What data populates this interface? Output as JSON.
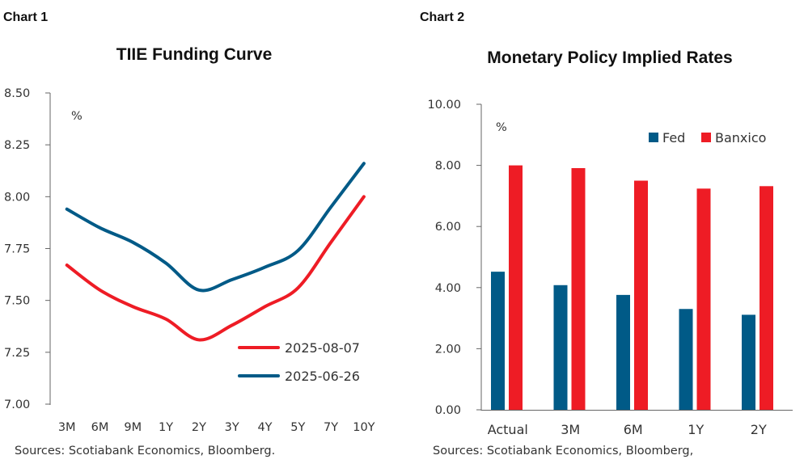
{
  "chart_data": [
    {
      "label": "Chart 1",
      "type": "line",
      "title": "TIIE Funding Curve",
      "ylabel": "%",
      "categories": [
        "3M",
        "6M",
        "9M",
        "1Y",
        "2Y",
        "3Y",
        "4Y",
        "5Y",
        "7Y",
        "10Y"
      ],
      "ylim": [
        7.0,
        8.5
      ],
      "yticks": [
        "7.00",
        "7.25",
        "7.50",
        "7.75",
        "8.00",
        "8.25",
        "8.50"
      ],
      "legend": "bottom-right",
      "grid": false,
      "series": [
        {
          "name": "2025-08-07",
          "color": "#ee1c25",
          "values": [
            7.67,
            7.55,
            7.47,
            7.41,
            7.31,
            7.38,
            7.47,
            7.56,
            7.78,
            8.0
          ]
        },
        {
          "name": "2025-06-26",
          "color": "#005a87",
          "values": [
            7.94,
            7.85,
            7.78,
            7.68,
            7.55,
            7.6,
            7.66,
            7.74,
            7.95,
            8.16
          ]
        }
      ],
      "source": "Sources: Scotiabank Economics, Bloomberg."
    },
    {
      "label": "Chart 2",
      "type": "bar",
      "title": "Monetary Policy Implied Rates",
      "ylabel": "%",
      "categories": [
        "Actual",
        "3M",
        "6M",
        "1Y",
        "2Y"
      ],
      "ylim": [
        0,
        10
      ],
      "yticks": [
        "0.00",
        "2.00",
        "4.00",
        "6.00",
        "8.00",
        "10.00"
      ],
      "legend": "top-right",
      "grid": false,
      "series": [
        {
          "name": "Fed",
          "color": "#005a87",
          "values": [
            4.52,
            4.08,
            3.76,
            3.3,
            3.11
          ]
        },
        {
          "name": "Banxico",
          "color": "#ee1c25",
          "values": [
            8.0,
            7.91,
            7.5,
            7.24,
            7.32
          ]
        }
      ],
      "source": "Sources: Scotiabank Economics, Bloomberg,"
    }
  ]
}
